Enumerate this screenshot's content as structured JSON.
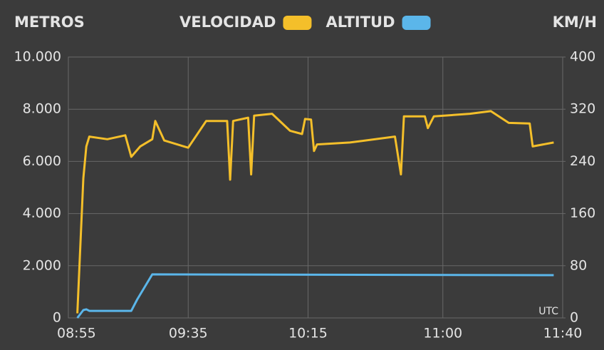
{
  "chart_data": {
    "type": "line",
    "y_axis_label": "METROS",
    "y2_axis_label": "KM/H",
    "annotation": "UTC",
    "legend": "top",
    "grid": true,
    "xlim": [
      "08:55",
      "11:40"
    ],
    "xticks": [
      "08:55",
      "09:35",
      "10:15",
      "11:00",
      "11:40"
    ],
    "ylim": [
      0,
      10000
    ],
    "yticks": [
      0,
      {
        "value": 2000,
        "label": "2.000"
      },
      {
        "value": 4000,
        "label": "4.000"
      },
      {
        "value": 6000,
        "label": "6.000"
      },
      {
        "value": 8000,
        "label": "8.000"
      },
      {
        "value": 10000,
        "label": "10.000"
      }
    ],
    "y2lim": [
      0,
      400
    ],
    "y2ticks": [
      0,
      80,
      160,
      240,
      320,
      400
    ],
    "series": [
      {
        "name": "VELOCIDAD",
        "color": "#f4bf2a",
        "axis": "y2",
        "x": [
          "08:58",
          "09:00",
          "09:01",
          "09:02",
          "09:08",
          "09:14",
          "09:16",
          "09:19",
          "09:23",
          "09:24",
          "09:27",
          "09:35",
          "09:41",
          "09:48",
          "09:49",
          "09:50",
          "09:55",
          "09:56",
          "09:57",
          "10:03",
          "10:09",
          "10:13",
          "10:14",
          "10:16",
          "10:17",
          "10:18",
          "10:29",
          "10:44",
          "10:46",
          "10:47",
          "10:54",
          "10:55",
          "10:57",
          "11:09",
          "11:16",
          "11:22",
          "11:29",
          "11:30",
          "11:37"
        ],
        "values": [
          7,
          214,
          263,
          278,
          274,
          280,
          247,
          263,
          274,
          302,
          272,
          261,
          302,
          302,
          212,
          302,
          307,
          220,
          310,
          313,
          287,
          282,
          305,
          304,
          256,
          266,
          269,
          278,
          220,
          309,
          309,
          291,
          309,
          313,
          317,
          299,
          298,
          263,
          269
        ]
      },
      {
        "name": "ALTITUD",
        "color": "#5bb6ea",
        "x": [
          "08:58",
          "09:00",
          "09:01",
          "09:02",
          "09:16",
          "09:18",
          "09:23",
          "11:37"
        ],
        "values": [
          0,
          300,
          330,
          270,
          270,
          710,
          1670,
          1640
        ]
      }
    ]
  }
}
